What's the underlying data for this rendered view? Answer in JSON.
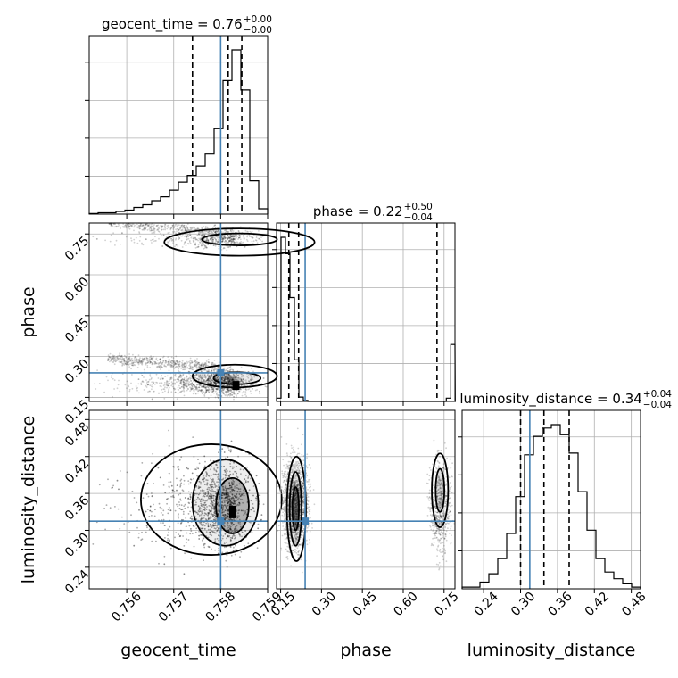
{
  "chart_data": {
    "type": "corner",
    "parameters": [
      {
        "name": "geocent_time",
        "axis_label": "geocent_time",
        "range": [
          0.7552,
          0.759
        ],
        "ticks": [
          0.756,
          0.757,
          0.758,
          0.759
        ],
        "tick_labels": [
          "0.756",
          "0.757",
          "0.758",
          "0.759"
        ],
        "truth": 0.758,
        "quantiles": [
          0.7574,
          0.75816,
          0.75845
        ],
        "title": {
          "base": "geocent_time = 0.76",
          "plus": "+0.00",
          "minus": "−0.00"
        },
        "hist": {
          "edges_start": 0.7552,
          "bin_width": 0.00019,
          "counts": [
            0.5,
            1,
            1,
            2,
            3,
            5,
            7,
            10,
            13,
            18,
            24,
            29,
            36,
            45,
            64,
            100,
            123,
            93,
            25,
            4
          ]
        }
      },
      {
        "name": "phase",
        "axis_label": "phase",
        "range": [
          0.135,
          0.79
        ],
        "ticks": [
          0.15,
          0.3,
          0.45,
          0.6,
          0.75
        ],
        "tick_labels": [
          "0.15",
          "0.30",
          "0.45",
          "0.60",
          "0.75"
        ],
        "truth": 0.24,
        "quantiles": [
          0.18,
          0.216,
          0.724
        ],
        "title": {
          "base": "phase = 0.22",
          "plus": "+0.50",
          "minus": "−0.04"
        },
        "hist": {
          "edges_start": 0.135,
          "bin_width": 0.0164,
          "counts": [
            3,
            150,
            135,
            95,
            38,
            4,
            1,
            0,
            0,
            0,
            0,
            0,
            0,
            0,
            0,
            0,
            0,
            0,
            0,
            0,
            0,
            0,
            0,
            0,
            0,
            0,
            0,
            0,
            0,
            0,
            0,
            0,
            0,
            0,
            0,
            0,
            0,
            0,
            3,
            52,
            0
          ]
        }
      },
      {
        "name": "luminosity_distance",
        "axis_label": "luminosity_distance",
        "range": [
          0.205,
          0.495
        ],
        "ticks": [
          0.24,
          0.3,
          0.36,
          0.42,
          0.48
        ],
        "tick_labels": [
          "0.24",
          "0.30",
          "0.36",
          "0.42",
          "0.48"
        ],
        "truth": 0.315,
        "quantiles": [
          0.3,
          0.338,
          0.379
        ],
        "title": {
          "base": "luminosity_distance = 0.34",
          "plus": "+0.04",
          "minus": "−0.04"
        },
        "hist": {
          "edges_start": 0.205,
          "bin_width": 0.0145,
          "counts": [
            1,
            1,
            4,
            9,
            18,
            33,
            55,
            80,
            91,
            96,
            98,
            92,
            81,
            58,
            35,
            18,
            10,
            6,
            3,
            1
          ]
        }
      }
    ],
    "phase_hist_fix": [
      3,
      150,
      135,
      95,
      38,
      4,
      1,
      0,
      0,
      0,
      0,
      0,
      0,
      0,
      0,
      0,
      0,
      0,
      0,
      0,
      0,
      0,
      0,
      0,
      0,
      0,
      0,
      0,
      0,
      0,
      0,
      0,
      0,
      0,
      0,
      0,
      0,
      0,
      3,
      52,
      0
    ],
    "grid": true,
    "colors": {
      "truth": "#4682b4",
      "hist": "#000000",
      "scatter": "#000000",
      "grid": "#b0b0b0"
    }
  }
}
